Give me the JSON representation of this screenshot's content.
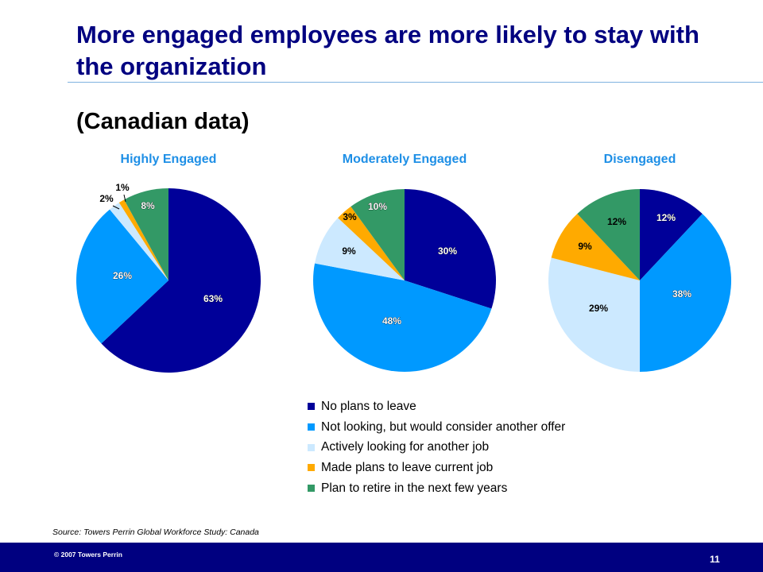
{
  "header": {
    "title": "More engaged employees are more likely to stay with the organization",
    "subtitle": "(Canadian data)"
  },
  "legend": [
    {
      "label": "No plans to leave",
      "color": "#000099"
    },
    {
      "label": "Not looking, but would consider another offer",
      "color": "#0099ff"
    },
    {
      "label": "Actively looking for another job",
      "color": "#cce9ff"
    },
    {
      "label": "Made plans to leave current job",
      "color": "#ffaa00"
    },
    {
      "label": "Plan to retire in the next few years",
      "color": "#339966"
    }
  ],
  "chart_data": [
    {
      "type": "pie",
      "title": "Highly Engaged",
      "categories": [
        "No plans to leave",
        "Not looking, but would consider another offer",
        "Actively looking for another job",
        "Made plans to leave current job",
        "Plan to retire in the next few years"
      ],
      "values": [
        63,
        26,
        2,
        1,
        8
      ],
      "labels": [
        "63%",
        "26%",
        "2%",
        "1%",
        "8%"
      ]
    },
    {
      "type": "pie",
      "title": "Moderately Engaged",
      "categories": [
        "No plans to leave",
        "Not looking, but would consider another offer",
        "Actively looking for another job",
        "Made plans to leave current job",
        "Plan to retire in the next few years"
      ],
      "values": [
        30,
        48,
        9,
        3,
        10
      ],
      "labels": [
        "30%",
        "48%",
        "9%",
        "3%",
        "10%"
      ]
    },
    {
      "type": "pie",
      "title": "Disengaged",
      "categories": [
        "No plans to leave",
        "Not looking, but would consider another offer",
        "Actively looking for another job",
        "Made plans to leave current job",
        "Plan to retire in the next few years"
      ],
      "values": [
        12,
        38,
        29,
        9,
        12
      ],
      "labels": [
        "12%",
        "38%",
        "29%",
        "9%",
        "12%"
      ]
    }
  ],
  "footer": {
    "source": "Source: Towers Perrin Global Workforce Study: Canada",
    "copyright": "© 2007 Towers Perrin",
    "page_number": "11"
  }
}
